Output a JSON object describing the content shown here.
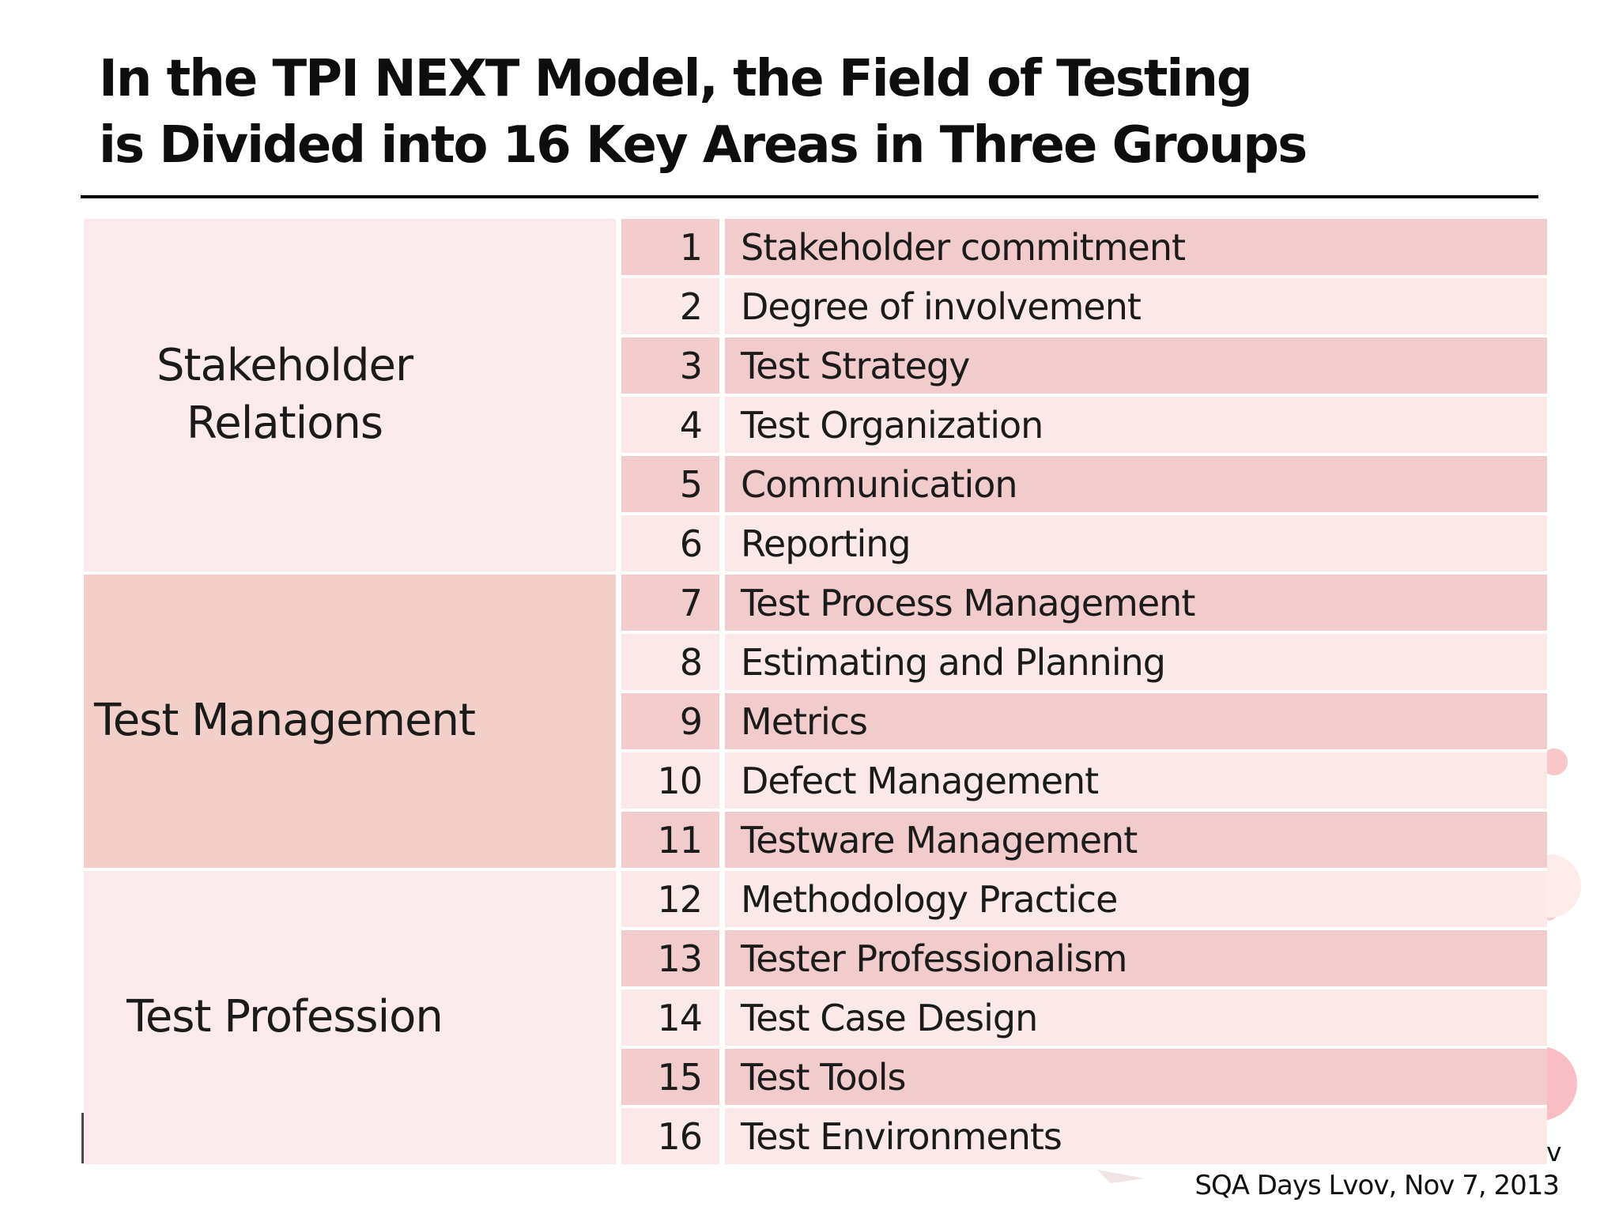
{
  "title": {
    "line1": "In the TPI NEXT Model, the Field of Testing",
    "line2": "is Divided into 16 Key Areas in Three Groups"
  },
  "table": {
    "groups": [
      {
        "label": "Stakeholder Relations",
        "tone": "light",
        "rows": [
          {
            "num": "1",
            "label": "Stakeholder commitment"
          },
          {
            "num": "2",
            "label": "Degree of involvement"
          },
          {
            "num": "3",
            "label": "Test Strategy"
          },
          {
            "num": "4",
            "label": "Test Organization"
          },
          {
            "num": "5",
            "label": "Communication"
          },
          {
            "num": "6",
            "label": "Reporting"
          }
        ]
      },
      {
        "label": "Test Management",
        "tone": "dark",
        "rows": [
          {
            "num": "7",
            "label": "Test Process Management"
          },
          {
            "num": "8",
            "label": "Estimating and Planning"
          },
          {
            "num": "9",
            "label": "Metrics"
          },
          {
            "num": "10",
            "label": "Defect Management"
          },
          {
            "num": "11",
            "label": "Testware Management"
          }
        ]
      },
      {
        "label": "Test Profession",
        "tone": "light",
        "rows": [
          {
            "num": "12",
            "label": "Methodology Practice"
          },
          {
            "num": "13",
            "label": "Tester Professionalism"
          },
          {
            "num": "14",
            "label": "Test Case Design"
          },
          {
            "num": "15",
            "label": "Test Tools"
          },
          {
            "num": "16",
            "label": "Test Environments"
          }
        ]
      }
    ]
  },
  "footer": {
    "text": "SQA Days Lvov, Nov 7, 2013",
    "stray_char": "v"
  },
  "theme": {
    "row_odd": "#f2cbcd",
    "row_even": "#fbe9e9",
    "group_light": "#faeaeb",
    "group_dark": "#f2d0c9",
    "text": "#1b1b1b",
    "rule": "#000000",
    "decor_medium": "#f9c6cb",
    "decor_faint": "#fdecea",
    "decor_sliver": "#f8ced3",
    "decor_strong": "#f9bec5"
  }
}
